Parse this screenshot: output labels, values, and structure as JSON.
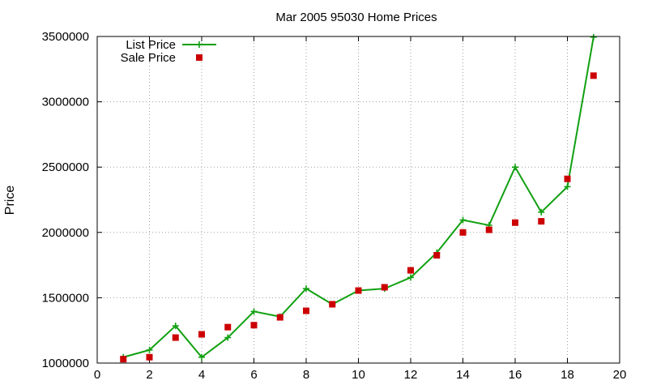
{
  "chart_data": {
    "type": "line",
    "title": "Mar 2005 95030 Home Prices",
    "xlabel": "",
    "ylabel": "Price",
    "xlim": [
      0,
      20
    ],
    "ylim": [
      1000000,
      3500000
    ],
    "xticks": [
      "0",
      "2",
      "4",
      "6",
      "8",
      "10",
      "12",
      "14",
      "16",
      "18",
      "20"
    ],
    "yticks": [
      "1000000",
      "1500000",
      "2000000",
      "2500000",
      "3000000",
      "3500000"
    ],
    "grid": true,
    "legend_position": "top-left",
    "series": [
      {
        "name": "List Price",
        "style": "line-with-plus-markers",
        "color": "#11a011",
        "x": [
          1,
          2,
          3,
          4,
          5,
          6,
          7,
          8,
          9,
          10,
          11,
          12,
          13,
          14,
          15,
          16,
          17,
          18,
          19
        ],
        "y": [
          1045000,
          1100000,
          1285000,
          1045000,
          1195000,
          1395000,
          1355000,
          1570000,
          1450000,
          1555000,
          1570000,
          1655000,
          1845000,
          2095000,
          2055000,
          2500000,
          2155000,
          2350000,
          3495000
        ]
      },
      {
        "name": "Sale Price",
        "style": "square-markers",
        "color": "#cc0000",
        "x": [
          1,
          2,
          3,
          4,
          5,
          6,
          7,
          8,
          9,
          10,
          11,
          12,
          13,
          14,
          15,
          16,
          17,
          18,
          19
        ],
        "y": [
          1030000,
          1045000,
          1195000,
          1220000,
          1275000,
          1290000,
          1350000,
          1400000,
          1450000,
          1555000,
          1580000,
          1710000,
          1825000,
          2000000,
          2020000,
          2075000,
          2085000,
          2410000,
          3200000
        ]
      }
    ]
  }
}
